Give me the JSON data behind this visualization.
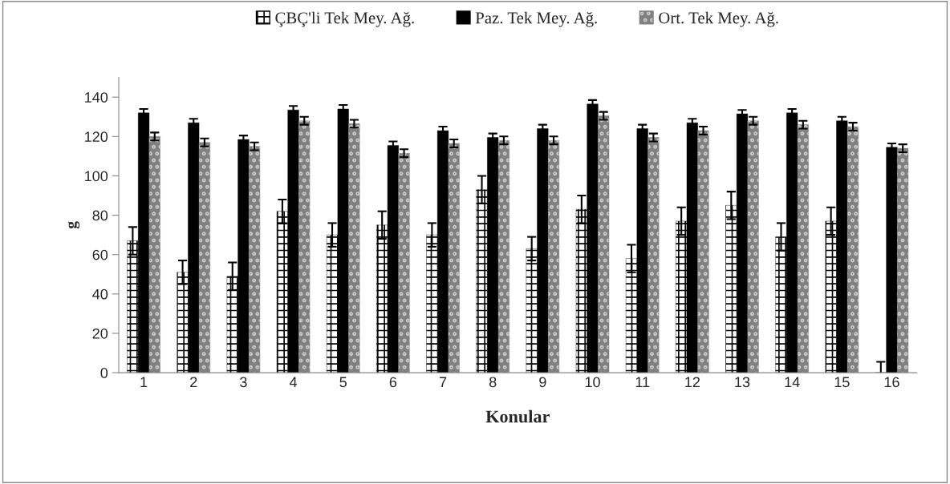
{
  "chart_data": {
    "type": "bar",
    "xlabel": "Konular",
    "ylabel": "g",
    "categories": [
      "1",
      "2",
      "3",
      "4",
      "5",
      "6",
      "7",
      "8",
      "9",
      "10",
      "11",
      "12",
      "13",
      "14",
      "15",
      "16"
    ],
    "series": [
      {
        "name": "ÇBÇ'li Tek Mey. Ağ.",
        "color": "#000000",
        "values": [
          67,
          51,
          49,
          82,
          70,
          75,
          70,
          93,
          63,
          83,
          58,
          77,
          85,
          69,
          77,
          0
        ],
        "errors": [
          7,
          6,
          7,
          6,
          6,
          7,
          6,
          7,
          6,
          7,
          7,
          7,
          7,
          7,
          7,
          5.5
        ]
      },
      {
        "name": "Paz. Tek Mey. Ağ.",
        "color": "#000000",
        "values": [
          132,
          127,
          118.5,
          133.5,
          134,
          115.5,
          123,
          119.5,
          124,
          136.5,
          124,
          127,
          131.5,
          132,
          128,
          114.5
        ],
        "errors": [
          2,
          2,
          2,
          2,
          2,
          2,
          2,
          2,
          2,
          2,
          2,
          2,
          2,
          2,
          2,
          2
        ]
      },
      {
        "name": "Ort. Tek Mey. Ağ.",
        "color": "#808080",
        "values": [
          120,
          117,
          115,
          128,
          126.5,
          111.5,
          116.5,
          118,
          118,
          130.5,
          119.5,
          123,
          128,
          126,
          125,
          114
        ],
        "errors": [
          2,
          2,
          2,
          2,
          2,
          2,
          2,
          2,
          2,
          2,
          2,
          2,
          2,
          2,
          2,
          2
        ]
      }
    ],
    "ylim": [
      0,
      150
    ],
    "yticks": [
      0,
      20,
      40,
      60,
      80,
      100,
      120,
      140
    ],
    "grid": false,
    "legend": "top"
  }
}
